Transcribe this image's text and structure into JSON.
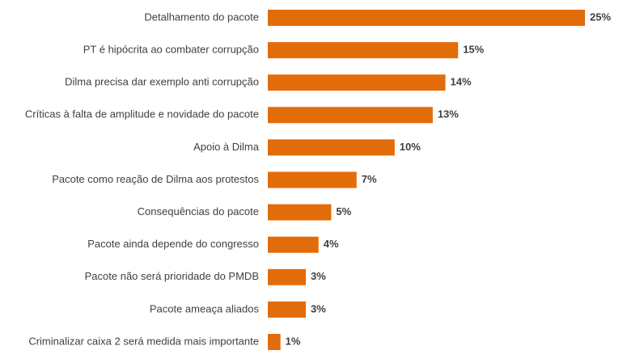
{
  "chart_data": {
    "type": "bar",
    "orientation": "horizontal",
    "categories": [
      "Detalhamento do pacote",
      "PT é hipócrita ao combater corrupção",
      "Dilma precisa dar exemplo anti corrupção",
      "Críticas à falta de amplitude e novidade do pacote",
      "Apoio à Dilma",
      "Pacote como reação de Dilma aos protestos",
      "Consequências do pacote",
      "Pacote ainda depende do congresso",
      "Pacote não será prioridade do PMDB",
      "Pacote ameaça aliados",
      "Criminalizar caixa 2 será medida mais importante"
    ],
    "values": [
      25,
      15,
      14,
      13,
      10,
      7,
      5,
      4,
      3,
      3,
      1
    ],
    "value_labels": [
      "25%",
      "15%",
      "14%",
      "13%",
      "10%",
      "7%",
      "5%",
      "4%",
      "3%",
      "3%",
      "1%"
    ],
    "unit": "%",
    "xlim": [
      0,
      25
    ],
    "grid": false,
    "legend": "none",
    "colors": {
      "bar": "#E36C0A",
      "text": "#404040"
    }
  }
}
